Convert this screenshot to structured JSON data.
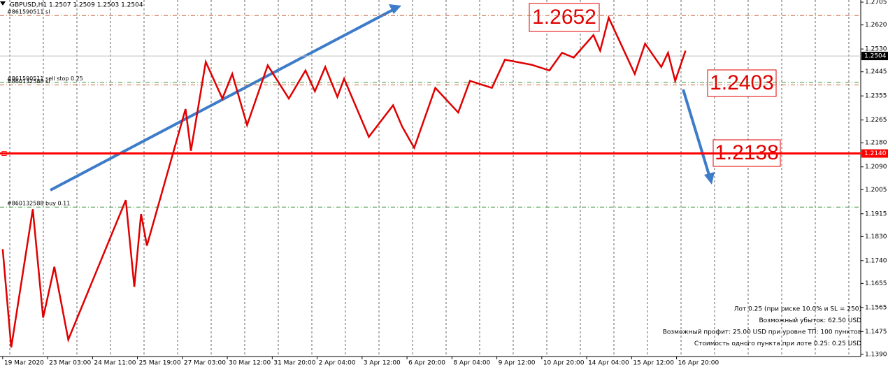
{
  "chart_data": {
    "type": "line",
    "title": "GBPUSD,H1  1.2507 1.2509 1.2503 1.2504",
    "xlim": [
      -0.06,
      19.1
    ],
    "ylim": [
      1.1382,
      1.2713
    ],
    "xticks": [
      {
        "value": 0,
        "label": "19 Mar 2020"
      },
      {
        "value": 1,
        "label": "23 Mar 03:00"
      },
      {
        "value": 2,
        "label": "24 Mar 11:00"
      },
      {
        "value": 3,
        "label": "25 Mar 19:00"
      },
      {
        "value": 4,
        "label": "27 Mar 03:00"
      },
      {
        "value": 5,
        "label": "30 Mar 12:00"
      },
      {
        "value": 6,
        "label": "31 Mar 20:00"
      },
      {
        "value": 7,
        "label": "2 Apr 04:00"
      },
      {
        "value": 8,
        "label": "3 Apr 12:00"
      },
      {
        "value": 9,
        "label": "6 Apr 20:00"
      },
      {
        "value": 10,
        "label": "8 Apr 04:00"
      },
      {
        "value": 11,
        "label": "9 Apr 12:00"
      },
      {
        "value": 12,
        "label": "10 Apr 20:00"
      },
      {
        "value": 13,
        "label": "14 Apr 04:00"
      },
      {
        "value": 14,
        "label": "15 Apr 12:00"
      },
      {
        "value": 15,
        "label": "16 Apr 20:00"
      }
    ],
    "yticks": [
      {
        "value": 1.2705,
        "label": "1.2705"
      },
      {
        "value": 1.262,
        "label": "1.2620"
      },
      {
        "value": 1.253,
        "label": "1.2530"
      },
      {
        "value": 1.2445,
        "label": "1.2445"
      },
      {
        "value": 1.2355,
        "label": "1.2355"
      },
      {
        "value": 1.2265,
        "label": "1.2265"
      },
      {
        "value": 1.218,
        "label": "1.2180"
      },
      {
        "value": 1.209,
        "label": "1.2090"
      },
      {
        "value": 1.2005,
        "label": "1.2005"
      },
      {
        "value": 1.1915,
        "label": "1.1915"
      },
      {
        "value": 1.183,
        "label": "1.1830"
      },
      {
        "value": 1.174,
        "label": "1.1740"
      },
      {
        "value": 1.1655,
        "label": "1.1655"
      },
      {
        "value": 1.1565,
        "label": "1.1565"
      },
      {
        "value": 1.1475,
        "label": "1.1475"
      },
      {
        "value": 1.139,
        "label": "1.1390"
      }
    ],
    "series": [
      {
        "color": "#e00000",
        "x": [
          0,
          0.19,
          0.67,
          0.9,
          1.15,
          1.46,
          2.74,
          2.93,
          3.08,
          3.21,
          4.07,
          4.19,
          4.52,
          4.89,
          5.11,
          5.44,
          5.9,
          6.37,
          6.74,
          6.95,
          7.18,
          7.45,
          7.6,
          8.15,
          8.69,
          8.89,
          9.16,
          9.63,
          10.14,
          10.4,
          10.89,
          11.18,
          11.78,
          12.17,
          12.45,
          12.71,
          13.15,
          13.3,
          13.49,
          14.07,
          14.3,
          14.66,
          14.81,
          14.97,
          15.2
        ],
        "values": [
          1.1783,
          1.1416,
          1.1932,
          1.1527,
          1.1717,
          1.1445,
          1.1966,
          1.1642,
          1.1914,
          1.1796,
          1.2306,
          1.215,
          1.2482,
          1.2345,
          1.2437,
          1.2246,
          1.2469,
          1.2345,
          1.245,
          1.2372,
          1.2463,
          1.2351,
          1.2419,
          1.2202,
          1.232,
          1.2241,
          1.2161,
          1.2385,
          1.2293,
          1.2411,
          1.2385,
          1.249,
          1.2471,
          1.245,
          1.2516,
          1.2498,
          1.2582,
          1.2524,
          1.2647,
          1.2437,
          1.255,
          1.2463,
          1.2516,
          1.2411,
          1.2524
        ]
      }
    ],
    "level": {
      "value": 1.214,
      "label": "1.2140",
      "color": "#ff0000"
    },
    "current_price": {
      "value": 1.2504,
      "label": "1.2504"
    },
    "orders": [
      {
        "label": "#861590511 sl",
        "value": 1.2655,
        "color": "#c8643c"
      },
      {
        "label": "#861590511 sell stop 0.25",
        "value": 1.2406,
        "color": "#3c963c"
      },
      {
        "label": "#860132588 sl",
        "value": 1.2396,
        "color": "#c8643c"
      },
      {
        "label": "#860132588 buy 0.11",
        "value": 1.194,
        "color": "#3c963c"
      }
    ],
    "annotations": [
      "1.2652",
      "1.2403",
      "1.2138"
    ],
    "info": [
      "Лот 0.25 (при риске 10.0% и SL = 250)",
      "Возможный убыток: 62.50 USD",
      "Возможный профит: 25.00 USD при уровне ТП: 100 пунктов",
      "Стоимость одного пункта при лоте 0.25: 0.25 USD"
    ]
  }
}
